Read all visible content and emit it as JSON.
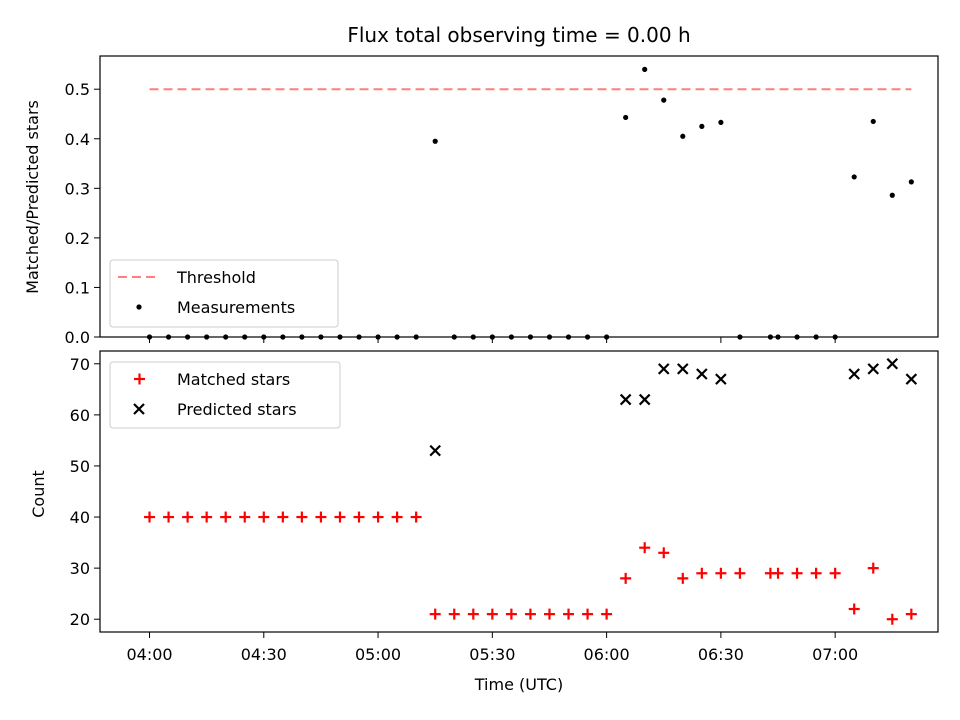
{
  "chart_data": [
    {
      "type": "scatter",
      "title": "Flux total observing time = 0.00 h",
      "xlabel": "",
      "ylabel": "Matched/Predicted stars",
      "xlim": [
        "03:47",
        "07:27"
      ],
      "ylim": [
        0,
        0.567
      ],
      "xticks": [
        "04:00",
        "04:30",
        "05:00",
        "05:30",
        "06:00",
        "06:30",
        "07:00"
      ],
      "yticks": [
        "0.0",
        "0.1",
        "0.2",
        "0.3",
        "0.4",
        "0.5"
      ],
      "legend": {
        "position": "lower-left",
        "entries": [
          "Threshold",
          "Measurements"
        ]
      },
      "colors": {
        "threshold": "#ff7f7f",
        "measurements": "#000000"
      },
      "series": [
        {
          "name": "Threshold",
          "style": "dashed-line",
          "x": [
            "04:00",
            "07:20"
          ],
          "y": [
            0.5,
            0.5
          ]
        },
        {
          "name": "Measurements",
          "style": "dot",
          "x": [
            "04:00",
            "04:05",
            "04:10",
            "04:15",
            "04:20",
            "04:25",
            "04:30",
            "04:35",
            "04:40",
            "04:45",
            "04:50",
            "04:55",
            "05:00",
            "05:05",
            "05:10",
            "05:15",
            "05:20",
            "05:25",
            "05:30",
            "05:35",
            "05:40",
            "05:45",
            "05:50",
            "05:55",
            "06:00",
            "06:05",
            "06:10",
            "06:15",
            "06:20",
            "06:25",
            "06:30",
            "06:35",
            "06:43",
            "06:45",
            "06:50",
            "06:55",
            "07:00",
            "07:05",
            "07:10",
            "07:15",
            "07:20"
          ],
          "y": [
            0,
            0,
            0,
            0,
            0,
            0,
            0,
            0,
            0,
            0,
            0,
            0,
            0,
            0,
            0,
            0.395,
            0,
            0,
            0,
            0,
            0,
            0,
            0,
            0,
            0,
            0.443,
            0.54,
            0.478,
            0.405,
            0.425,
            0.433,
            0,
            0,
            0,
            0,
            0,
            0,
            0.323,
            0.435,
            0.286,
            0.313
          ]
        }
      ]
    },
    {
      "type": "scatter",
      "title": "",
      "xlabel": "Time (UTC)",
      "ylabel": "Count",
      "xlim": [
        "03:47",
        "07:27"
      ],
      "ylim": [
        17.5,
        72.5
      ],
      "xticks": [
        "04:00",
        "04:30",
        "05:00",
        "05:30",
        "06:00",
        "06:30",
        "07:00"
      ],
      "yticks": [
        "20",
        "30",
        "40",
        "50",
        "60",
        "70"
      ],
      "legend": {
        "position": "upper-left",
        "entries": [
          "Matched stars",
          "Predicted stars"
        ]
      },
      "colors": {
        "matched": "#ff0000",
        "predicted": "#000000"
      },
      "series": [
        {
          "name": "Matched stars",
          "marker": "plus",
          "x": [
            "04:00",
            "04:05",
            "04:10",
            "04:15",
            "04:20",
            "04:25",
            "04:30",
            "04:35",
            "04:40",
            "04:45",
            "04:50",
            "04:55",
            "05:00",
            "05:05",
            "05:10",
            "05:15",
            "05:20",
            "05:25",
            "05:30",
            "05:35",
            "05:40",
            "05:45",
            "05:50",
            "05:55",
            "06:00",
            "06:05",
            "06:10",
            "06:15",
            "06:20",
            "06:25",
            "06:30",
            "06:35",
            "06:43",
            "06:45",
            "06:50",
            "06:55",
            "07:00",
            "07:05",
            "07:10",
            "07:15",
            "07:20"
          ],
          "y": [
            40,
            40,
            40,
            40,
            40,
            40,
            40,
            40,
            40,
            40,
            40,
            40,
            40,
            40,
            40,
            21,
            21,
            21,
            21,
            21,
            21,
            21,
            21,
            21,
            21,
            28,
            34,
            33,
            28,
            29,
            29,
            29,
            29,
            29,
            29,
            29,
            29,
            22,
            30,
            20,
            21
          ]
        },
        {
          "name": "Predicted stars",
          "marker": "x",
          "x": [
            "05:15",
            "06:05",
            "06:10",
            "06:15",
            "06:20",
            "06:25",
            "06:30",
            "07:05",
            "07:10",
            "07:15",
            "07:20"
          ],
          "y": [
            53,
            63,
            63,
            69,
            69,
            68,
            67,
            68,
            69,
            70,
            67
          ]
        }
      ]
    }
  ]
}
